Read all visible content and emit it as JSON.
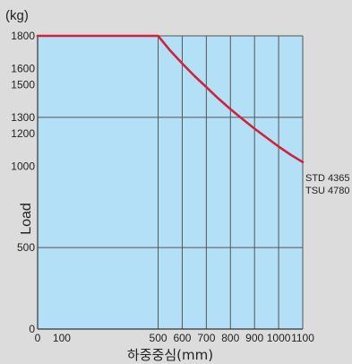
{
  "chart_data": {
    "type": "line",
    "unit_label": "(kg)",
    "ylabel": "Load",
    "xlabel": "하중중심(mm)",
    "x_ticks": [
      0,
      100,
      500,
      600,
      700,
      800,
      900,
      1000,
      1100
    ],
    "y_ticks": [
      0,
      500,
      1000,
      1200,
      1300,
      1500,
      1600,
      1800
    ],
    "x_gridlines": [
      500,
      600,
      700,
      800,
      900,
      1000,
      1100
    ],
    "y_gridlines": [
      500,
      1300,
      1800
    ],
    "xlim": [
      0,
      1100
    ],
    "ylim": [
      0,
      1800
    ],
    "series": [
      {
        "x": [
          0,
          500,
          550,
          600,
          650,
          700,
          750,
          800,
          850,
          900,
          950,
          1000,
          1050,
          1100
        ],
        "y": [
          1800,
          1800,
          1710,
          1630,
          1555,
          1485,
          1415,
          1350,
          1290,
          1230,
          1175,
          1120,
          1070,
          1025
        ]
      }
    ],
    "annotations": [
      "STD 4365",
      "TSU 4780"
    ],
    "colors": {
      "line": "#d0223a",
      "plot_bg": "#b3e0f7",
      "grid": "#555555",
      "page_bg": "#dcdcdc"
    },
    "grid": true
  }
}
